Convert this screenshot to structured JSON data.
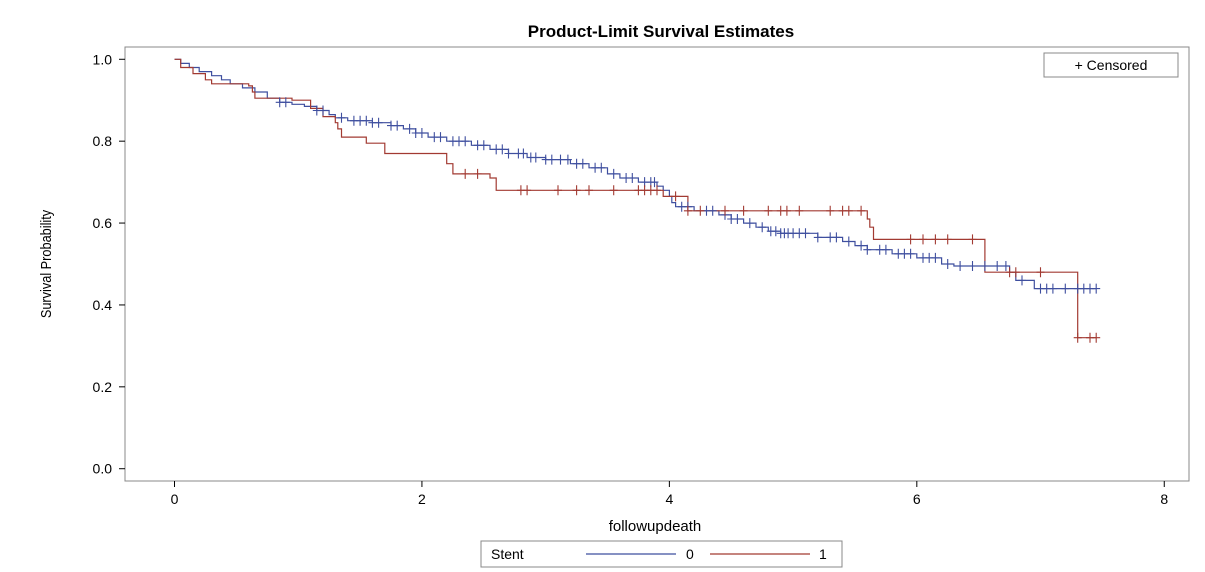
{
  "chart_data": {
    "type": "line",
    "subtype": "kaplan-meier step",
    "title": "Product-Limit Survival Estimates",
    "xlabel": "followupdeath",
    "ylabel": "Survival Probability",
    "xlim": [
      -0.4,
      8.2
    ],
    "ylim": [
      -0.03,
      1.03
    ],
    "xticks": [
      "0",
      "2",
      "4",
      "6",
      "8"
    ],
    "xtick_values": [
      0,
      2,
      4,
      6,
      8
    ],
    "yticks": [
      "0.0",
      "0.2",
      "0.4",
      "0.6",
      "0.8",
      "1.0"
    ],
    "ytick_values": [
      0,
      0.2,
      0.4,
      0.6,
      0.8,
      1.0
    ],
    "grid": false,
    "censored_legend": "+ Censored",
    "censored_legend_position": "top-right",
    "legend": {
      "title": "Stent",
      "position": "bottom",
      "entries": [
        "0",
        "1"
      ]
    },
    "series": [
      {
        "name": "0",
        "color": "#3f4f9f",
        "step": [
          [
            0,
            1.0
          ],
          [
            0.05,
            0.99
          ],
          [
            0.12,
            0.98
          ],
          [
            0.2,
            0.97
          ],
          [
            0.3,
            0.96
          ],
          [
            0.38,
            0.95
          ],
          [
            0.45,
            0.94
          ],
          [
            0.55,
            0.93
          ],
          [
            0.65,
            0.92
          ],
          [
            0.75,
            0.905
          ],
          [
            0.85,
            0.895
          ],
          [
            0.95,
            0.89
          ],
          [
            1.05,
            0.885
          ],
          [
            1.15,
            0.875
          ],
          [
            1.25,
            0.865
          ],
          [
            1.3,
            0.857
          ],
          [
            1.4,
            0.85
          ],
          [
            1.6,
            0.845
          ],
          [
            1.75,
            0.838
          ],
          [
            1.85,
            0.83
          ],
          [
            1.95,
            0.82
          ],
          [
            2.05,
            0.81
          ],
          [
            2.2,
            0.8
          ],
          [
            2.4,
            0.79
          ],
          [
            2.55,
            0.78
          ],
          [
            2.7,
            0.77
          ],
          [
            2.85,
            0.76
          ],
          [
            3.0,
            0.755
          ],
          [
            3.2,
            0.745
          ],
          [
            3.35,
            0.735
          ],
          [
            3.5,
            0.72
          ],
          [
            3.6,
            0.71
          ],
          [
            3.75,
            0.7
          ],
          [
            3.9,
            0.69
          ],
          [
            3.95,
            0.68
          ],
          [
            4.0,
            0.665
          ],
          [
            4.02,
            0.65
          ],
          [
            4.05,
            0.64
          ],
          [
            4.2,
            0.63
          ],
          [
            4.4,
            0.62
          ],
          [
            4.5,
            0.61
          ],
          [
            4.6,
            0.6
          ],
          [
            4.7,
            0.59
          ],
          [
            4.8,
            0.58
          ],
          [
            4.9,
            0.575
          ],
          [
            5.2,
            0.565
          ],
          [
            5.4,
            0.555
          ],
          [
            5.5,
            0.545
          ],
          [
            5.6,
            0.535
          ],
          [
            5.8,
            0.525
          ],
          [
            6.0,
            0.515
          ],
          [
            6.2,
            0.5
          ],
          [
            6.3,
            0.495
          ],
          [
            6.75,
            0.48
          ],
          [
            6.8,
            0.46
          ],
          [
            6.95,
            0.44
          ],
          [
            7.45,
            0.44
          ]
        ],
        "censored_x": [
          0.85,
          0.9,
          1.15,
          1.2,
          1.35,
          1.45,
          1.5,
          1.55,
          1.6,
          1.65,
          1.75,
          1.8,
          1.9,
          1.95,
          2.0,
          2.1,
          2.15,
          2.25,
          2.3,
          2.35,
          2.45,
          2.5,
          2.6,
          2.65,
          2.7,
          2.78,
          2.82,
          2.88,
          2.92,
          3.0,
          3.05,
          3.12,
          3.18,
          3.25,
          3.3,
          3.4,
          3.45,
          3.55,
          3.65,
          3.7,
          3.8,
          3.85,
          3.88,
          4.1,
          4.15,
          4.3,
          4.35,
          4.45,
          4.5,
          4.55,
          4.65,
          4.75,
          4.82,
          4.86,
          4.9,
          4.93,
          4.96,
          5.0,
          5.05,
          5.1,
          5.2,
          5.3,
          5.35,
          5.45,
          5.55,
          5.6,
          5.7,
          5.75,
          5.85,
          5.9,
          5.95,
          6.05,
          6.1,
          6.15,
          6.25,
          6.35,
          6.45,
          6.55,
          6.65,
          6.72,
          6.85,
          7.0,
          7.05,
          7.1,
          7.2,
          7.3,
          7.35,
          7.4,
          7.45
        ]
      },
      {
        "name": "1",
        "color": "#a23a32",
        "step": [
          [
            0,
            1.0
          ],
          [
            0.05,
            0.98
          ],
          [
            0.15,
            0.965
          ],
          [
            0.25,
            0.95
          ],
          [
            0.3,
            0.94
          ],
          [
            0.6,
            0.935
          ],
          [
            0.63,
            0.92
          ],
          [
            0.65,
            0.905
          ],
          [
            0.95,
            0.9
          ],
          [
            1.1,
            0.88
          ],
          [
            1.2,
            0.86
          ],
          [
            1.3,
            0.845
          ],
          [
            1.32,
            0.83
          ],
          [
            1.35,
            0.81
          ],
          [
            1.55,
            0.795
          ],
          [
            1.7,
            0.77
          ],
          [
            2.2,
            0.745
          ],
          [
            2.25,
            0.72
          ],
          [
            2.55,
            0.71
          ],
          [
            2.6,
            0.68
          ],
          [
            3.95,
            0.665
          ],
          [
            4.15,
            0.63
          ],
          [
            5.6,
            0.61
          ],
          [
            5.62,
            0.59
          ],
          [
            5.65,
            0.56
          ],
          [
            6.55,
            0.48
          ],
          [
            7.3,
            0.32
          ],
          [
            7.45,
            0.32
          ]
        ],
        "censored_x": [
          2.35,
          2.45,
          2.8,
          2.85,
          3.1,
          3.25,
          3.35,
          3.55,
          3.75,
          3.8,
          3.85,
          3.9,
          4.05,
          4.15,
          4.25,
          4.45,
          4.6,
          4.8,
          4.9,
          4.95,
          5.05,
          5.3,
          5.4,
          5.45,
          5.55,
          5.95,
          6.05,
          6.15,
          6.25,
          6.45,
          6.75,
          6.8,
          7.0,
          7.3,
          7.4,
          7.45
        ]
      }
    ]
  }
}
